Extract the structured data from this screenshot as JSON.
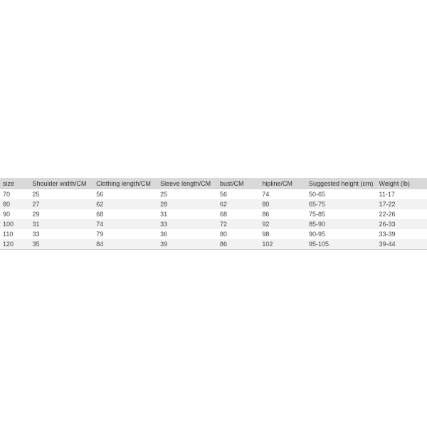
{
  "size_table": {
    "type": "table",
    "header_bg": "#d9d9d9",
    "row_alt_bg": "#f2f2f2",
    "row_bg": "#ffffff",
    "text_color": "#333333",
    "font_size": 9,
    "columns": [
      {
        "key": "size",
        "label": "size"
      },
      {
        "key": "shoulder",
        "label": "Shoulder width/CM"
      },
      {
        "key": "clothing",
        "label": "Clothing length/CM"
      },
      {
        "key": "sleeve",
        "label": "Sleeve length/CM"
      },
      {
        "key": "bust",
        "label": "bust/CM"
      },
      {
        "key": "hip",
        "label": "hipline/CM"
      },
      {
        "key": "height",
        "label": "Suggested height (cm)"
      },
      {
        "key": "weight",
        "label": "Weight (lb)"
      }
    ],
    "rows": [
      {
        "size": "70",
        "shoulder": "25",
        "clothing": "56",
        "sleeve": "25",
        "bust": "56",
        "hip": "74",
        "height": "50-65",
        "weight": "11-17"
      },
      {
        "size": "80",
        "shoulder": "27",
        "clothing": "62",
        "sleeve": "28",
        "bust": "62",
        "hip": "80",
        "height": "65-75",
        "weight": "17-22"
      },
      {
        "size": "90",
        "shoulder": "29",
        "clothing": "68",
        "sleeve": "31",
        "bust": "68",
        "hip": "86",
        "height": "75-85",
        "weight": "22-26"
      },
      {
        "size": "100",
        "shoulder": "31",
        "clothing": "74",
        "sleeve": "33",
        "bust": "72",
        "hip": "92",
        "height": "85-90",
        "weight": "26-33"
      },
      {
        "size": "110",
        "shoulder": "33",
        "clothing": "79",
        "sleeve": "36",
        "bust": "80",
        "hip": "98",
        "height": "90-95",
        "weight": "33-39"
      },
      {
        "size": "120",
        "shoulder": "35",
        "clothing": "84",
        "sleeve": "39",
        "bust": "86",
        "hip": "102",
        "height": "95-105",
        "weight": "39-44"
      }
    ]
  }
}
